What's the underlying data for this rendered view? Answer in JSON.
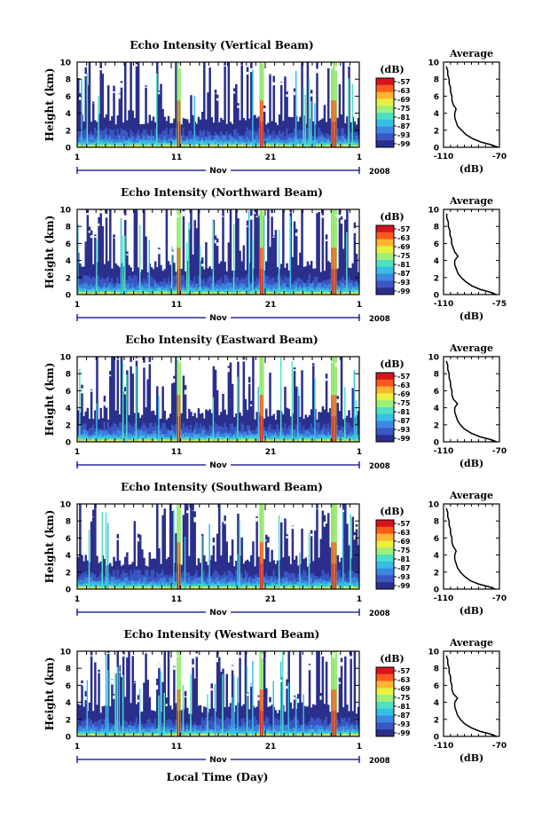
{
  "figure": {
    "xlabel_bottom": "Local Time (Day)",
    "x_ticks": [
      "1",
      "11",
      "21",
      "1"
    ],
    "month_label": "Nov",
    "year_label": "2008",
    "ylabel": "Height (km)",
    "y_ticks": [
      "0",
      "2",
      "4",
      "6",
      "8",
      "10"
    ],
    "colorbar_unit": "(dB)",
    "colorbar_ticks": [
      "-57",
      "-63",
      "-69",
      "-75",
      "-81",
      "-87",
      "-93",
      "-99"
    ],
    "profile_title": "Average",
    "profile_xlabel": "(dB)",
    "profile_y_ticks": [
      "0",
      "2",
      "4",
      "6",
      "8",
      "10"
    ],
    "colors": {
      "colormap": [
        "#2b2f8c",
        "#3a57c4",
        "#3d88e0",
        "#38bde6",
        "#4fe0c4",
        "#9ef07a",
        "#e8f040",
        "#ffb52e",
        "#ff5a1e",
        "#d7141e"
      ],
      "ink": "#000000",
      "background": "#ffffff",
      "axis_line": "#00008b"
    }
  },
  "chart_data": [
    {
      "type": "heatmap",
      "title": "Echo Intensity (Vertical Beam)",
      "xlabel": "",
      "ylabel": "Height (km)",
      "x_range": [
        "Nov 1, 2008",
        "Dec 1, 2008"
      ],
      "ylim": [
        0,
        10
      ],
      "color_range_db": [
        -99,
        -57
      ],
      "strong_echo_days": [
        11.8,
        20.6,
        28.3
      ],
      "profile": {
        "title": "Average",
        "xlabel": "(dB)",
        "xlim": [
          -110,
          -70
        ],
        "x_ticks": [
          "-110",
          "-70"
        ],
        "height_km": [
          0,
          0.3,
          0.6,
          1.0,
          1.5,
          2.0,
          2.5,
          3.0,
          3.5,
          4.0,
          4.5,
          5.0,
          5.5,
          6.0,
          6.5,
          7.0,
          7.5,
          8.0,
          8.5,
          9.0,
          9.5
        ],
        "value_db": [
          -71,
          -76,
          -83,
          -89,
          -94,
          -97,
          -100,
          -101,
          -102,
          -102,
          -101,
          -103,
          -104,
          -104,
          -105,
          -105,
          -106,
          -106,
          -107,
          -107,
          -108
        ]
      }
    },
    {
      "type": "heatmap",
      "title": "Echo Intensity (Northward Beam)",
      "xlabel": "",
      "ylabel": "Height (km)",
      "x_range": [
        "Nov 1, 2008",
        "Dec 1, 2008"
      ],
      "ylim": [
        0,
        10
      ],
      "color_range_db": [
        -99,
        -57
      ],
      "strong_echo_days": [
        11.8,
        20.6,
        28.3
      ],
      "profile": {
        "title": "Average",
        "xlabel": "(dB)",
        "xlim": [
          -110,
          -75
        ],
        "x_ticks": [
          "-110",
          "-75"
        ],
        "height_km": [
          0,
          0.3,
          0.6,
          1.0,
          1.5,
          2.0,
          2.5,
          3.0,
          3.5,
          4.0,
          4.5,
          5.0,
          5.5,
          6.0,
          6.5,
          7.0,
          7.5,
          8.0,
          8.5,
          9.0,
          9.5
        ],
        "value_db": [
          -77,
          -81,
          -87,
          -92,
          -96,
          -99,
          -101,
          -102,
          -103,
          -103,
          -101,
          -103,
          -104,
          -105,
          -105,
          -106,
          -106,
          -107,
          -107,
          -108,
          -108
        ]
      }
    },
    {
      "type": "heatmap",
      "title": "Echo Intensity (Eastward Beam)",
      "xlabel": "",
      "ylabel": "Height (km)",
      "x_range": [
        "Nov 1, 2008",
        "Dec 1, 2008"
      ],
      "ylim": [
        0,
        10
      ],
      "color_range_db": [
        -99,
        -57
      ],
      "strong_echo_days": [
        11.8,
        20.6,
        28.3
      ],
      "profile": {
        "title": "Average",
        "xlabel": "(dB)",
        "xlim": [
          -110,
          -70
        ],
        "x_ticks": [
          "-110",
          "-70"
        ],
        "height_km": [
          0,
          0.3,
          0.6,
          1.0,
          1.5,
          2.0,
          2.5,
          3.0,
          3.5,
          4.0,
          4.5,
          5.0,
          5.5,
          6.0,
          6.5,
          7.0,
          7.5,
          8.0,
          8.5,
          9.0,
          9.5
        ],
        "value_db": [
          -72,
          -77,
          -84,
          -90,
          -95,
          -98,
          -100,
          -101,
          -102,
          -102,
          -100,
          -103,
          -104,
          -104,
          -105,
          -105,
          -106,
          -106,
          -107,
          -107,
          -108
        ]
      }
    },
    {
      "type": "heatmap",
      "title": "Echo Intensity (Southward Beam)",
      "xlabel": "",
      "ylabel": "Height (km)",
      "x_range": [
        "Nov 1, 2008",
        "Dec 1, 2008"
      ],
      "ylim": [
        0,
        10
      ],
      "color_range_db": [
        -99,
        -57
      ],
      "strong_echo_days": [
        11.8,
        20.6,
        28.3
      ],
      "profile": {
        "title": "Average",
        "xlabel": "(dB)",
        "xlim": [
          -110,
          -70
        ],
        "x_ticks": [
          "-110",
          "-70"
        ],
        "height_km": [
          0,
          0.3,
          0.6,
          1.0,
          1.5,
          2.0,
          2.5,
          3.0,
          3.5,
          4.0,
          4.5,
          5.0,
          5.5,
          6.0,
          6.5,
          7.0,
          7.5,
          8.0,
          8.5,
          9.0,
          9.5
        ],
        "value_db": [
          -73,
          -78,
          -85,
          -91,
          -95,
          -98,
          -100,
          -101,
          -102,
          -102,
          -101,
          -103,
          -104,
          -104,
          -105,
          -105,
          -106,
          -106,
          -107,
          -107,
          -108
        ]
      }
    },
    {
      "type": "heatmap",
      "title": "Echo Intensity (Westward Beam)",
      "xlabel": "Local Time (Day)",
      "ylabel": "Height (km)",
      "x_range": [
        "Nov 1, 2008",
        "Dec 1, 2008"
      ],
      "ylim": [
        0,
        10
      ],
      "color_range_db": [
        -99,
        -57
      ],
      "strong_echo_days": [
        11.8,
        20.6,
        28.3
      ],
      "profile": {
        "title": "Average",
        "xlabel": "(dB)",
        "xlim": [
          -110,
          -70
        ],
        "x_ticks": [
          "-110",
          "-70"
        ],
        "height_km": [
          0,
          0.3,
          0.6,
          1.0,
          1.5,
          2.0,
          2.5,
          3.0,
          3.5,
          4.0,
          4.5,
          5.0,
          5.5,
          6.0,
          6.5,
          7.0,
          7.5,
          8.0,
          8.5,
          9.0,
          9.5
        ],
        "value_db": [
          -72,
          -77,
          -84,
          -90,
          -95,
          -98,
          -100,
          -101,
          -102,
          -102,
          -100,
          -103,
          -104,
          -104,
          -105,
          -105,
          -106,
          -106,
          -107,
          -107,
          -108
        ]
      }
    }
  ]
}
